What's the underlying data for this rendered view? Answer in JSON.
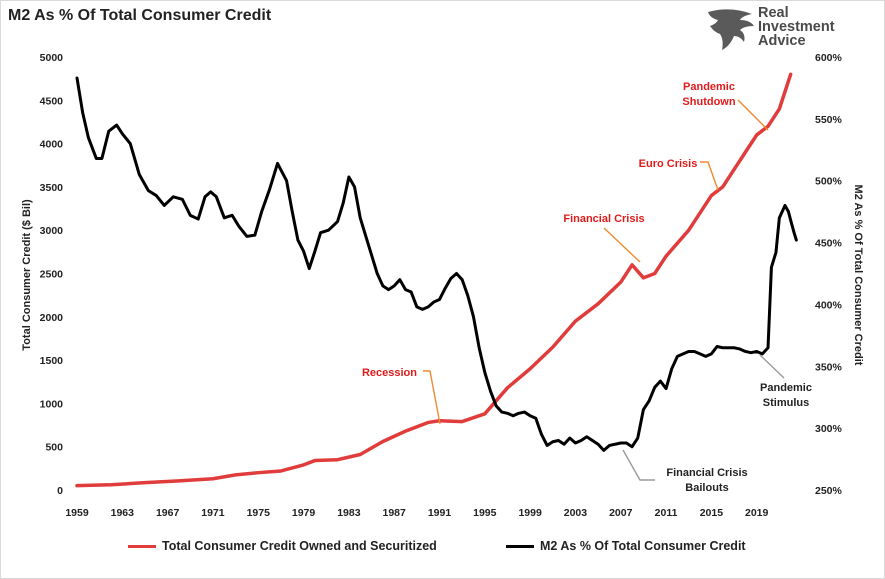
{
  "chart_data": {
    "type": "line",
    "title": "M2 As % Of Total Consumer Credit",
    "logo": "Real Investment Advice",
    "ylabel_left": "Total Consumer Credit ($ Bil)",
    "ylabel_right": "M2 As % Of Total Consumer Credit",
    "ylim_left": [
      0,
      5000
    ],
    "ylim_right": [
      250,
      600
    ],
    "xlim": [
      1959,
      2023
    ],
    "grid": false,
    "legend_position": "bottom",
    "colors": {
      "credit": "#e03c3c",
      "m2": "#000000",
      "annotation_red": "#e01b1b",
      "leader_orange": "#f08a30",
      "leader_gray": "#9a9a9a"
    },
    "x_ticks": [
      "1959",
      "1963",
      "1967",
      "1971",
      "1975",
      "1979",
      "1983",
      "1987",
      "1991",
      "1995",
      "1999",
      "2003",
      "2007",
      "2011",
      "2015",
      "2019"
    ],
    "y_ticks_left": [
      "0",
      "500",
      "1000",
      "1500",
      "2000",
      "2500",
      "3000",
      "3500",
      "4000",
      "4500",
      "5000"
    ],
    "y_ticks_right": [
      "250%",
      "300%",
      "350%",
      "400%",
      "450%",
      "500%",
      "550%",
      "600%"
    ],
    "series": [
      {
        "name": "Total Consumer Credit Owned and Securitized",
        "axis": "left",
        "points": [
          [
            1959,
            50
          ],
          [
            1962,
            60
          ],
          [
            1965,
            85
          ],
          [
            1968,
            105
          ],
          [
            1971,
            130
          ],
          [
            1973,
            175
          ],
          [
            1975,
            200
          ],
          [
            1977,
            220
          ],
          [
            1979,
            290
          ],
          [
            1980,
            340
          ],
          [
            1982,
            350
          ],
          [
            1984,
            410
          ],
          [
            1986,
            560
          ],
          [
            1988,
            680
          ],
          [
            1990,
            780
          ],
          [
            1991,
            800
          ],
          [
            1993,
            790
          ],
          [
            1995,
            880
          ],
          [
            1997,
            1180
          ],
          [
            1999,
            1400
          ],
          [
            2001,
            1650
          ],
          [
            2003,
            1950
          ],
          [
            2005,
            2150
          ],
          [
            2007,
            2400
          ],
          [
            2008,
            2600
          ],
          [
            2009,
            2450
          ],
          [
            2010,
            2500
          ],
          [
            2011,
            2700
          ],
          [
            2013,
            3000
          ],
          [
            2015,
            3400
          ],
          [
            2016,
            3500
          ],
          [
            2017,
            3700
          ],
          [
            2018,
            3900
          ],
          [
            2019,
            4100
          ],
          [
            2020,
            4200
          ],
          [
            2021,
            4400
          ],
          [
            2022,
            4800
          ]
        ]
      },
      {
        "name": "M2 As % Of Total Consumer Credit",
        "axis": "right",
        "points": [
          [
            1959,
            583
          ],
          [
            1959.5,
            555
          ],
          [
            1960,
            535
          ],
          [
            1960.7,
            518
          ],
          [
            1961.2,
            518
          ],
          [
            1961.8,
            540
          ],
          [
            1962.5,
            545
          ],
          [
            1963,
            538
          ],
          [
            1963.7,
            530
          ],
          [
            1964.5,
            505
          ],
          [
            1965.3,
            492
          ],
          [
            1966,
            488
          ],
          [
            1966.7,
            480
          ],
          [
            1967.5,
            487
          ],
          [
            1968.3,
            485
          ],
          [
            1969,
            472
          ],
          [
            1969.7,
            469
          ],
          [
            1970.3,
            487
          ],
          [
            1970.8,
            491
          ],
          [
            1971.3,
            487
          ],
          [
            1972,
            470
          ],
          [
            1972.7,
            472
          ],
          [
            1973.3,
            463
          ],
          [
            1974,
            455
          ],
          [
            1974.7,
            456
          ],
          [
            1975.3,
            475
          ],
          [
            1976,
            493
          ],
          [
            1976.7,
            514
          ],
          [
            1977.5,
            500
          ],
          [
            1978,
            475
          ],
          [
            1978.5,
            452
          ],
          [
            1979,
            443
          ],
          [
            1979.5,
            429
          ],
          [
            1980,
            443
          ],
          [
            1980.5,
            458
          ],
          [
            1981.2,
            460
          ],
          [
            1982,
            467
          ],
          [
            1982.5,
            482
          ],
          [
            1983,
            503
          ],
          [
            1983.5,
            495
          ],
          [
            1984,
            470
          ],
          [
            1984.5,
            455
          ],
          [
            1985,
            440
          ],
          [
            1985.5,
            425
          ],
          [
            1986,
            415
          ],
          [
            1986.5,
            412
          ],
          [
            1987,
            415
          ],
          [
            1987.5,
            420
          ],
          [
            1988,
            412
          ],
          [
            1988.5,
            410
          ],
          [
            1989,
            398
          ],
          [
            1989.5,
            396
          ],
          [
            1990,
            398
          ],
          [
            1990.5,
            402
          ],
          [
            1991,
            404
          ],
          [
            1991.5,
            413
          ],
          [
            1992,
            421
          ],
          [
            1992.5,
            425
          ],
          [
            1993,
            420
          ],
          [
            1993.5,
            407
          ],
          [
            1994,
            390
          ],
          [
            1994.5,
            365
          ],
          [
            1995,
            345
          ],
          [
            1995.5,
            330
          ],
          [
            1996,
            318
          ],
          [
            1996.5,
            313
          ],
          [
            1997,
            312
          ],
          [
            1997.5,
            310
          ],
          [
            1998,
            312
          ],
          [
            1998.5,
            313
          ],
          [
            1999,
            310
          ],
          [
            1999.5,
            308
          ],
          [
            2000,
            295
          ],
          [
            2000.5,
            286
          ],
          [
            2001,
            289
          ],
          [
            2001.5,
            290
          ],
          [
            2002,
            287
          ],
          [
            2002.5,
            292
          ],
          [
            2003,
            288
          ],
          [
            2003.5,
            290
          ],
          [
            2004,
            293
          ],
          [
            2004.5,
            290
          ],
          [
            2005,
            287
          ],
          [
            2005.5,
            282
          ],
          [
            2006,
            286
          ],
          [
            2006.5,
            287
          ],
          [
            2007,
            288
          ],
          [
            2007.5,
            288
          ],
          [
            2008,
            285
          ],
          [
            2008.5,
            292
          ],
          [
            2009,
            315
          ],
          [
            2009.5,
            322
          ],
          [
            2010,
            333
          ],
          [
            2010.5,
            338
          ],
          [
            2011,
            332
          ],
          [
            2011.5,
            348
          ],
          [
            2012,
            358
          ],
          [
            2012.5,
            360
          ],
          [
            2013,
            362
          ],
          [
            2013.5,
            362
          ],
          [
            2014,
            360
          ],
          [
            2014.5,
            358
          ],
          [
            2015,
            360
          ],
          [
            2015.5,
            366
          ],
          [
            2016,
            365
          ],
          [
            2017,
            365
          ],
          [
            2017.5,
            364
          ],
          [
            2018,
            362
          ],
          [
            2018.5,
            361
          ],
          [
            2019,
            362
          ],
          [
            2019.5,
            360
          ],
          [
            2020,
            365
          ],
          [
            2020.3,
            430
          ],
          [
            2020.7,
            442
          ],
          [
            2021,
            470
          ],
          [
            2021.5,
            480
          ],
          [
            2021.8,
            475
          ],
          [
            2022,
            468
          ],
          [
            2022.3,
            458
          ],
          [
            2022.5,
            452
          ]
        ]
      }
    ],
    "annotations": [
      {
        "text": "Recession",
        "color": "red",
        "label_x": 1988,
        "label_y": 1400
      },
      {
        "text": "Financial Crisis",
        "color": "red",
        "label_x": 2007.5,
        "label_y": 3150
      },
      {
        "text": "Euro Crisis",
        "color": "red",
        "label_x": 2010.5,
        "label_y": 3780
      },
      {
        "text": "Pandemic",
        "text2": "Shutdown",
        "color": "red",
        "label_x": 2015.5,
        "label_y": 4680
      },
      {
        "text": "Pandemic",
        "text2": "Stimulus",
        "color": "black",
        "label_x": 2021.5,
        "label_y": 1220
      },
      {
        "text": "Financial Crisis",
        "text2": "Bailouts",
        "color": "black",
        "label_x": 2013.5,
        "label_y": 240
      }
    ]
  }
}
